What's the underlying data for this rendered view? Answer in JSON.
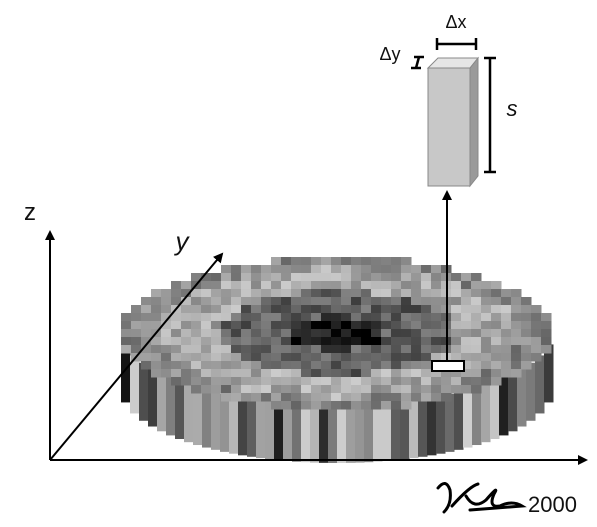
{
  "labels": {
    "dx": "Δx",
    "dy": "Δy",
    "s": "s",
    "z": "z",
    "y": "y",
    "year": "2000"
  }
}
